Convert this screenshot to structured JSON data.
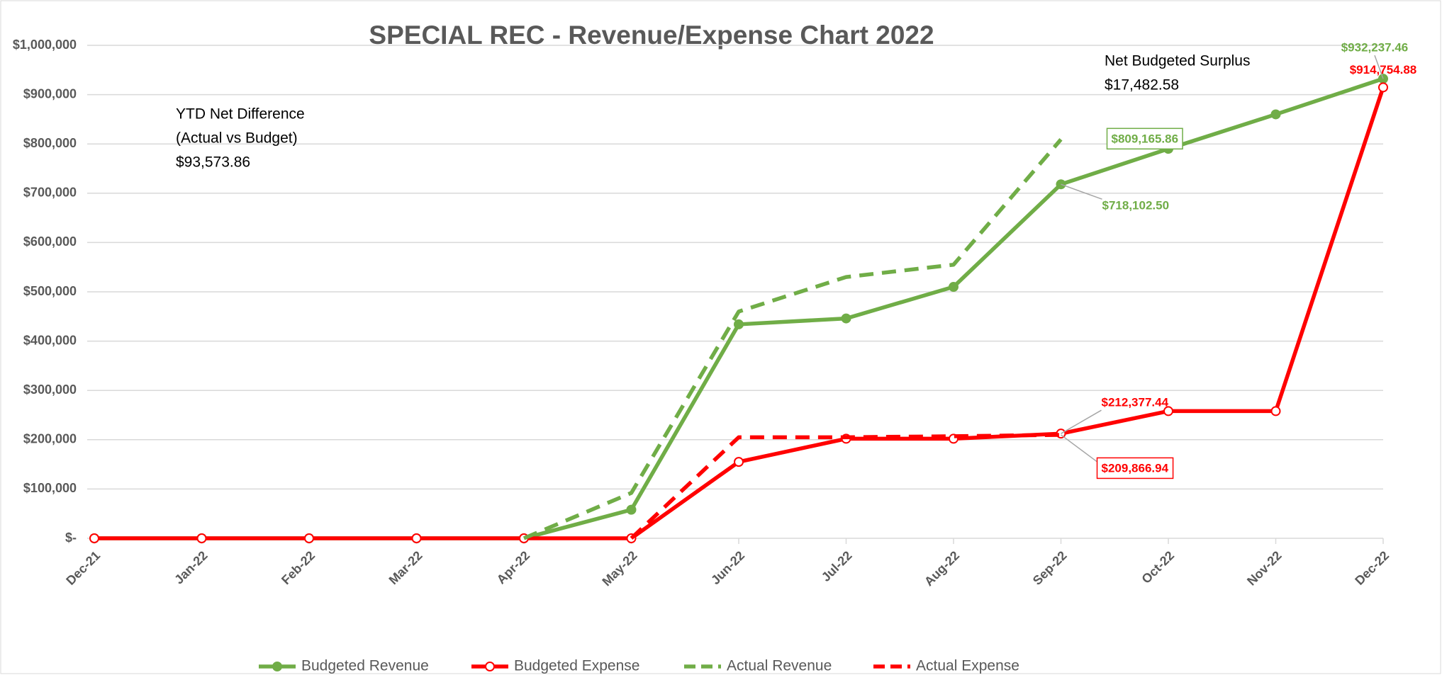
{
  "chart_data": {
    "type": "line",
    "title": "SPECIAL REC - Revenue/Expense Chart 2022",
    "categories": [
      "Dec-21",
      "Jan-22",
      "Feb-22",
      "Mar-22",
      "Apr-22",
      "May-22",
      "Jun-22",
      "Jul-22",
      "Aug-22",
      "Sep-22",
      "Oct-22",
      "Nov-22",
      "Dec-22"
    ],
    "series": [
      {
        "name": "Budgeted Revenue",
        "color": "#70ad47",
        "line_style": "solid",
        "marker": "filled",
        "values": [
          0,
          0,
          0,
          0,
          0,
          58000,
          434000,
          446000,
          510000,
          718102.5,
          790000,
          860000,
          932237.46
        ],
        "value_labels": [
          null,
          null,
          null,
          null,
          null,
          null,
          null,
          null,
          null,
          "$718,102.50",
          null,
          null,
          "$932,237.46"
        ]
      },
      {
        "name": "Budgeted Expense",
        "color": "#ff0000",
        "line_style": "solid",
        "marker": "hollow",
        "values": [
          0,
          0,
          0,
          0,
          0,
          0,
          155000,
          202000,
          202000,
          212377.44,
          258000,
          258000,
          914754.88
        ],
        "value_labels": [
          null,
          null,
          null,
          null,
          null,
          null,
          null,
          null,
          null,
          "$212,377.44",
          null,
          null,
          "$914,754.88"
        ]
      },
      {
        "name": "Actual Revenue",
        "color": "#70ad47",
        "line_style": "dashed",
        "marker": "none",
        "label_box": true,
        "values": [
          null,
          null,
          null,
          null,
          0,
          92000,
          460000,
          530000,
          555000,
          809165.86,
          null,
          null,
          null
        ],
        "value_labels": [
          null,
          null,
          null,
          null,
          null,
          null,
          null,
          null,
          null,
          "$809,165.86",
          null,
          null,
          null
        ]
      },
      {
        "name": "Actual Expense",
        "color": "#ff0000",
        "line_style": "dashed",
        "marker": "none",
        "label_box": true,
        "values": [
          null,
          null,
          null,
          null,
          null,
          0,
          205000,
          205000,
          207000,
          209866.94,
          null,
          null,
          null
        ],
        "value_labels": [
          null,
          null,
          null,
          null,
          null,
          null,
          null,
          null,
          null,
          "$209,866.94",
          null,
          null,
          null
        ]
      }
    ],
    "ylim": [
      0,
      1000000
    ],
    "yticks": [
      {
        "value": 0,
        "label": "$-"
      },
      {
        "value": 100000,
        "label": "$100,000"
      },
      {
        "value": 200000,
        "label": "$200,000"
      },
      {
        "value": 300000,
        "label": "$300,000"
      },
      {
        "value": 400000,
        "label": "$400,000"
      },
      {
        "value": 500000,
        "label": "$500,000"
      },
      {
        "value": 600000,
        "label": "$600,000"
      },
      {
        "value": 700000,
        "label": "$700,000"
      },
      {
        "value": 800000,
        "label": "$800,000"
      },
      {
        "value": 900000,
        "label": "$900,000"
      },
      {
        "value": 1000000,
        "label": "$1,000,000"
      }
    ],
    "grid": true,
    "legend": "bottom",
    "annotations": [
      {
        "lines": [
          "YTD Net Difference",
          "(Actual vs Budget)",
          "$93,573.86"
        ]
      },
      {
        "lines": [
          "Net Budgeted Surplus",
          "$17,482.58"
        ]
      }
    ]
  }
}
